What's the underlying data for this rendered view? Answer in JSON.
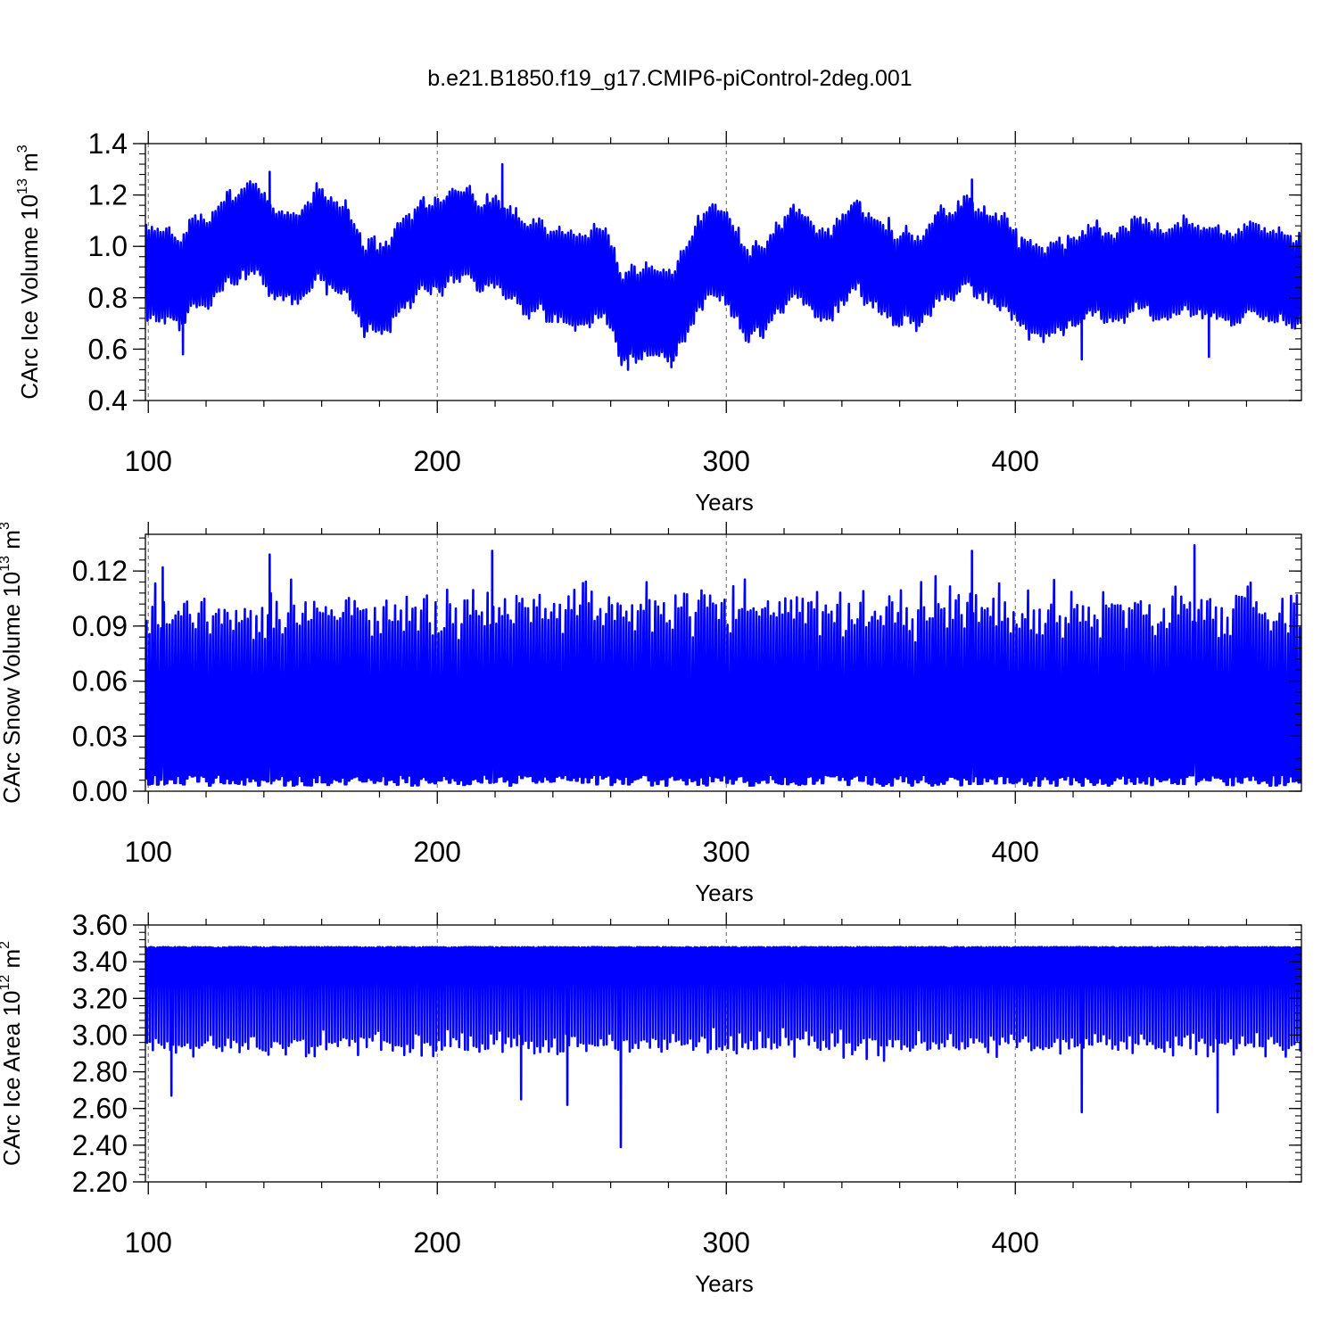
{
  "figure": {
    "title": "b.e21.B1850.f19_g17.CMIP6-piControl-2deg.001",
    "line_color": "#0000ff"
  },
  "chart_data": [
    {
      "type": "line",
      "xlabel": "Years",
      "ylabel": {
        "base": "CArc Ice Volume 10",
        "exp": "13",
        "unit": " m",
        "unit_exp": "3"
      },
      "xlim": [
        99,
        499
      ],
      "ylim": [
        0.4,
        1.4
      ],
      "x_ticks": [
        100,
        200,
        300,
        400
      ],
      "y_ticks": [
        0.4,
        0.6,
        0.8,
        1.0,
        1.2,
        1.4
      ],
      "y_tick_labels": [
        "0.4",
        "0.6",
        "0.8",
        "1.0",
        "1.2",
        "1.4"
      ],
      "grid": "vertical dashed at major x ticks",
      "series": [
        {
          "resolution": "monthly",
          "smooth_trend": [
            [
              100,
              0.9
            ],
            [
              110,
              0.88
            ],
            [
              120,
              0.96
            ],
            [
              130,
              1.04
            ],
            [
              140,
              1.03
            ],
            [
              150,
              0.95
            ],
            [
              160,
              1.06
            ],
            [
              170,
              0.93
            ],
            [
              175,
              0.85
            ],
            [
              185,
              0.88
            ],
            [
              195,
              0.98
            ],
            [
              205,
              1.05
            ],
            [
              215,
              1.0
            ],
            [
              222,
              1.06
            ],
            [
              230,
              0.93
            ],
            [
              240,
              0.88
            ],
            [
              250,
              0.85
            ],
            [
              258,
              0.9
            ],
            [
              265,
              0.68
            ],
            [
              272,
              0.72
            ],
            [
              280,
              0.7
            ],
            [
              290,
              0.92
            ],
            [
              297,
              1.02
            ],
            [
              303,
              0.92
            ],
            [
              308,
              0.8
            ],
            [
              315,
              0.93
            ],
            [
              325,
              0.96
            ],
            [
              335,
              0.88
            ],
            [
              345,
              1.02
            ],
            [
              355,
              0.9
            ],
            [
              365,
              0.87
            ],
            [
              375,
              0.95
            ],
            [
              385,
              1.02
            ],
            [
              395,
              0.93
            ],
            [
              405,
              0.82
            ],
            [
              420,
              0.86
            ],
            [
              440,
              0.9
            ],
            [
              460,
              0.92
            ],
            [
              480,
              0.89
            ],
            [
              499,
              0.88
            ]
          ],
          "seasonal_amplitude": 0.17,
          "noise": 0.08,
          "extremes": [
            [
              222.5,
              1.32
            ],
            [
              142,
              1.29
            ],
            [
              385,
              1.26
            ],
            [
              266,
              0.52
            ],
            [
              281,
              0.53
            ],
            [
              112,
              0.58
            ],
            [
              423,
              0.56
            ],
            [
              467,
              0.57
            ]
          ]
        }
      ]
    },
    {
      "type": "line",
      "xlabel": "Years",
      "ylabel": {
        "base": "CArc Snow Volume 10",
        "exp": "13",
        "unit": " m",
        "unit_exp": "3"
      },
      "xlim": [
        99,
        499
      ],
      "ylim": [
        0.0,
        0.14
      ],
      "x_ticks": [
        100,
        200,
        300,
        400
      ],
      "y_ticks": [
        0.0,
        0.03,
        0.06,
        0.09,
        0.12
      ],
      "y_tick_labels": [
        "0.00",
        "0.03",
        "0.06",
        "0.09",
        "0.12"
      ],
      "grid": "vertical dashed at major x ticks",
      "series": [
        {
          "resolution": "monthly",
          "annual_min": 0.003,
          "annual_max_mean": 0.098,
          "annual_max_spread": 0.014,
          "extremes": [
            [
              219,
              0.131
            ],
            [
              385,
              0.131
            ],
            [
              462,
              0.134
            ],
            [
              142,
              0.129
            ],
            [
              105,
              0.122
            ]
          ]
        }
      ]
    },
    {
      "type": "line",
      "xlabel": "Years",
      "ylabel": {
        "base": "CArc Ice Area 10",
        "exp": "12",
        "unit": " m",
        "unit_exp": "2"
      },
      "xlim": [
        99,
        499
      ],
      "ylim": [
        2.2,
        3.6
      ],
      "x_ticks": [
        100,
        200,
        300,
        400
      ],
      "y_ticks": [
        2.2,
        2.4,
        2.6,
        2.8,
        3.0,
        3.2,
        3.4,
        3.6
      ],
      "y_tick_labels": [
        "2.20",
        "2.40",
        "2.60",
        "2.80",
        "3.00",
        "3.20",
        "3.40",
        "3.60"
      ],
      "grid": "vertical dashed at major x ticks",
      "series": [
        {
          "resolution": "monthly",
          "annual_max": 3.48,
          "annual_min_mean": 2.95,
          "annual_min_spread": 0.07,
          "extremes": [
            [
              263.5,
              2.39
            ],
            [
              423,
              2.58
            ],
            [
              470,
              2.58
            ],
            [
              245,
              2.62
            ],
            [
              108,
              2.67
            ],
            [
              229,
              2.65
            ]
          ]
        }
      ]
    }
  ]
}
